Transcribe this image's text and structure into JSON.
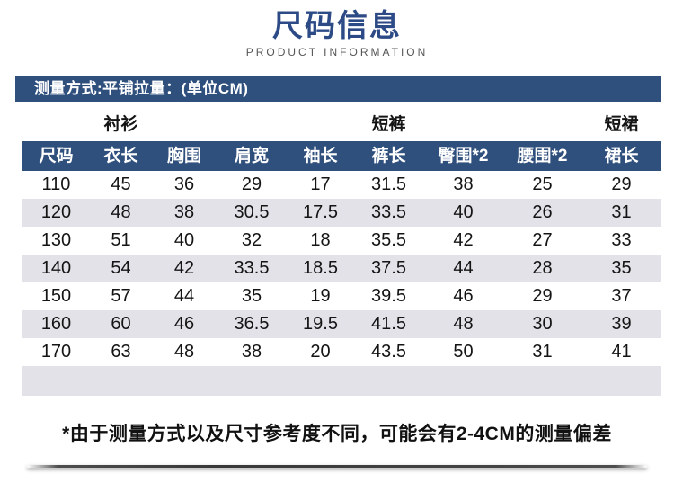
{
  "page": {
    "title": "尺码信息",
    "subtitle": "PRODUCT INFORMATION",
    "measure_label": "测量方式:平铺拉量：(单位CM)",
    "footnote": "*由于测量方式以及尺寸参考度不同，可能会有2-4CM的测量偏差"
  },
  "colors": {
    "navy_bar": "#2f4f7d",
    "title_blue": "#2c4a85",
    "alt_row": "#e2e2e8",
    "subtitle_gray": "#555555",
    "text_black": "#141414"
  },
  "chart_data": {
    "type": "table",
    "title": "尺码信息",
    "unit": "CM",
    "measure_method": "平铺拉量",
    "group_headers": [
      {
        "label": "衬衫",
        "column": 2,
        "name": "category-shirt"
      },
      {
        "label": "短裤",
        "column": 6,
        "name": "category-shorts"
      },
      {
        "label": "短裙",
        "column": 9,
        "name": "category-skirt"
      }
    ],
    "columns": [
      "尺码",
      "衣长",
      "胸围",
      "肩宽",
      "袖长",
      "裤长",
      "臀围*2",
      "腰围*2",
      "裙长"
    ],
    "rows": [
      [
        "110",
        "45",
        "36",
        "29",
        "17",
        "31.5",
        "38",
        "25",
        "29"
      ],
      [
        "120",
        "48",
        "38",
        "30.5",
        "17.5",
        "33.5",
        "40",
        "26",
        "31"
      ],
      [
        "130",
        "51",
        "40",
        "32",
        "18",
        "35.5",
        "42",
        "27",
        "33"
      ],
      [
        "140",
        "54",
        "42",
        "33.5",
        "18.5",
        "37.5",
        "44",
        "28",
        "35"
      ],
      [
        "150",
        "57",
        "44",
        "35",
        "19",
        "39.5",
        "46",
        "29",
        "37"
      ],
      [
        "160",
        "60",
        "46",
        "36.5",
        "19.5",
        "41.5",
        "48",
        "30",
        "39"
      ],
      [
        "170",
        "63",
        "48",
        "38",
        "20",
        "43.5",
        "50",
        "31",
        "41"
      ]
    ]
  }
}
